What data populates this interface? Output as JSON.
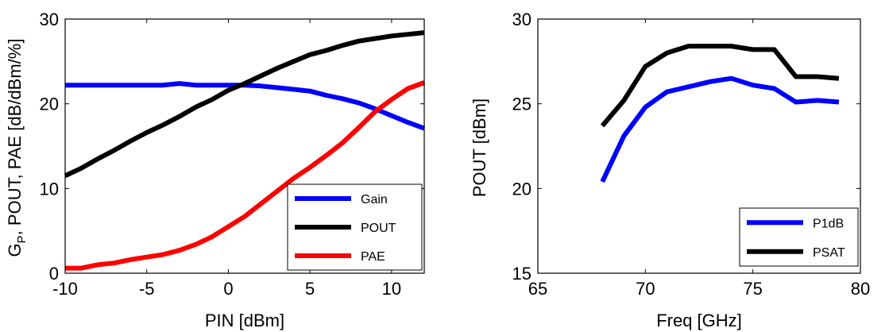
{
  "chart_data": [
    {
      "type": "line",
      "xlabel": "PIN [dBm]",
      "ylabel_main": "G",
      "ylabel_sub": "P",
      "ylabel_rest": ", POUT, PAE [dB/dBm/%]",
      "xlim": [
        -10,
        12
      ],
      "ylim": [
        0,
        30
      ],
      "xticks": [
        "-10",
        "-5",
        "0",
        "5",
        "10"
      ],
      "yticks": [
        "0",
        "10",
        "20",
        "30"
      ],
      "legend_position": "bottom-right",
      "series": [
        {
          "name": "Gain",
          "color": "#0000ff",
          "x": [
            -10,
            -9,
            -8,
            -7,
            -6,
            -5,
            -4,
            -3,
            -2,
            -1,
            0,
            1,
            2,
            3,
            4,
            5,
            6,
            7,
            8,
            9,
            10,
            11,
            12
          ],
          "y": [
            22.2,
            22.2,
            22.2,
            22.2,
            22.2,
            22.2,
            22.2,
            22.4,
            22.2,
            22.2,
            22.2,
            22.2,
            22.1,
            21.9,
            21.7,
            21.5,
            21.0,
            20.6,
            20.1,
            19.4,
            18.6,
            17.8,
            17.1
          ]
        },
        {
          "name": "POUT",
          "color": "#000000",
          "x": [
            -10,
            -9,
            -8,
            -7,
            -6,
            -5,
            -4,
            -3,
            -2,
            -1,
            0,
            1,
            2,
            3,
            4,
            5,
            6,
            7,
            8,
            9,
            10,
            11,
            12
          ],
          "y": [
            11.5,
            12.4,
            13.5,
            14.5,
            15.6,
            16.6,
            17.5,
            18.5,
            19.6,
            20.5,
            21.6,
            22.4,
            23.3,
            24.2,
            25.0,
            25.8,
            26.3,
            26.9,
            27.4,
            27.7,
            28.0,
            28.2,
            28.4
          ]
        },
        {
          "name": "PAE",
          "color": "#ff0000",
          "x": [
            -10,
            -9,
            -8,
            -7,
            -6,
            -5,
            -4,
            -3,
            -2,
            -1,
            0,
            1,
            2,
            3,
            4,
            5,
            6,
            7,
            8,
            9,
            10,
            11,
            12
          ],
          "y": [
            0.6,
            0.6,
            1.0,
            1.2,
            1.6,
            1.9,
            2.2,
            2.7,
            3.4,
            4.3,
            5.5,
            6.7,
            8.2,
            9.7,
            11.2,
            12.5,
            13.9,
            15.4,
            17.2,
            19.1,
            20.5,
            21.8,
            22.5
          ]
        }
      ]
    },
    {
      "type": "line",
      "xlabel": "Freq [GHz]",
      "ylabel": "POUT [dBm]",
      "xlim": [
        65,
        80
      ],
      "ylim": [
        15,
        30
      ],
      "xticks": [
        "65",
        "70",
        "75",
        "80"
      ],
      "yticks": [
        "15",
        "20",
        "25",
        "30"
      ],
      "legend_position": "bottom-right",
      "series": [
        {
          "name": "P1dB",
          "color": "#0000ff",
          "x": [
            68,
            69,
            70,
            71,
            72,
            73,
            74,
            75,
            76,
            77,
            78,
            79
          ],
          "y": [
            20.4,
            23.1,
            24.8,
            25.7,
            26.0,
            26.3,
            26.5,
            26.1,
            25.9,
            25.1,
            25.2,
            25.1
          ]
        },
        {
          "name": "PSAT",
          "color": "#000000",
          "x": [
            68,
            69,
            70,
            71,
            72,
            73,
            74,
            75,
            76,
            77,
            78,
            79
          ],
          "y": [
            23.7,
            25.2,
            27.2,
            28.0,
            28.4,
            28.4,
            28.4,
            28.2,
            28.2,
            26.6,
            26.6,
            26.5
          ]
        }
      ]
    }
  ]
}
